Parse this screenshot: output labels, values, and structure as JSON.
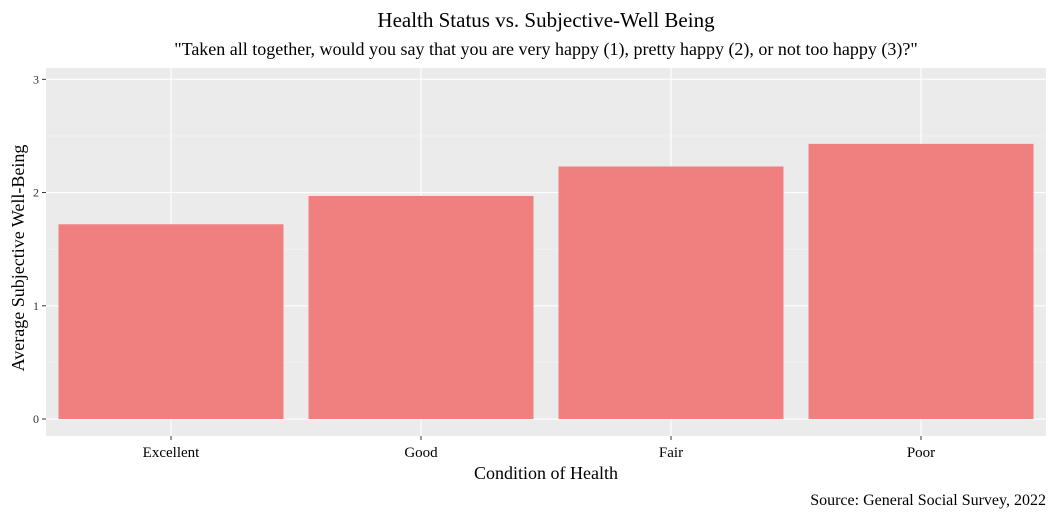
{
  "chart_data": {
    "type": "bar",
    "title": "Health Status vs. Subjective-Well Being",
    "subtitle": "\"Taken all together, would you say that you are very happy (1), pretty happy (2), or not too happy (3)?\"",
    "xlabel": "Condition of Health",
    "ylabel": "Average Subjective Well-Being",
    "categories": [
      "Excellent",
      "Good",
      "Fair",
      "Poor"
    ],
    "values": [
      1.72,
      1.97,
      2.23,
      2.43
    ],
    "ylim": [
      0,
      3
    ],
    "yticks": [
      0,
      1,
      2,
      3
    ],
    "grid": true,
    "caption": "Source: General Social Survey, 2022",
    "colors": {
      "bar": "#F08080",
      "panel": "#EBEBEB",
      "grid_major": "#FFFFFF",
      "grid_minor": "#F5F5F5",
      "tick": "#333333"
    }
  }
}
